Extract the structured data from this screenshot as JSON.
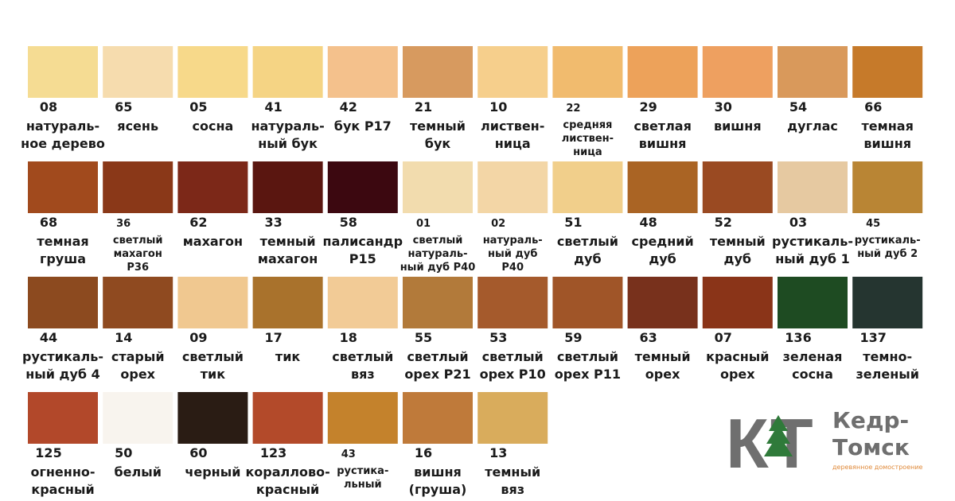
{
  "palette": {
    "rows": [
      [
        {
          "code": "08",
          "lines": [
            "натураль-",
            "ное дерево"
          ],
          "color": "#f5dc93"
        },
        {
          "code": "65",
          "lines": [
            "ясень"
          ],
          "color": "#f6dcae"
        },
        {
          "code": "05",
          "lines": [
            "сосна"
          ],
          "color": "#f7d98a"
        },
        {
          "code": "41",
          "lines": [
            "натураль-",
            "ный бук"
          ],
          "color": "#f5d484"
        },
        {
          "code": "42",
          "lines": [
            "бук Р17"
          ],
          "color": "#f4c18c"
        },
        {
          "code": "21",
          "lines": [
            "темный",
            "бук"
          ],
          "color": "#d79a5f"
        },
        {
          "code": "10",
          "lines": [
            "листвен-",
            "ница"
          ],
          "color": "#f6cf8c"
        },
        {
          "code": "22",
          "lines": [
            "средняя",
            "листвен-",
            "ница"
          ],
          "color": "#f1bb6e",
          "small": true
        },
        {
          "code": "29",
          "lines": [
            "светлая",
            "вишня"
          ],
          "color": "#eda25a"
        },
        {
          "code": "30",
          "lines": [
            "вишня"
          ],
          "color": "#eea060"
        },
        {
          "code": "54",
          "lines": [
            "дуглас"
          ],
          "color": "#d9995b"
        },
        {
          "code": "66",
          "lines": [
            "темная",
            "вишня"
          ],
          "color": "#c67a2a"
        }
      ],
      [
        {
          "code": "68",
          "lines": [
            "темная",
            "груша"
          ],
          "color": "#a14a1d"
        },
        {
          "code": "36",
          "lines": [
            "светлый",
            "махагон",
            "Р36"
          ],
          "color": "#8a3818",
          "small": true
        },
        {
          "code": "62",
          "lines": [
            "махагон"
          ],
          "color": "#7c2818"
        },
        {
          "code": "33",
          "lines": [
            "темный",
            "махагон"
          ],
          "color": "#5a1610"
        },
        {
          "code": "58",
          "lines": [
            "палисандр",
            "Р15"
          ],
          "color": "#3c0810"
        },
        {
          "code": "01",
          "lines": [
            "светлый",
            "натураль-",
            "ный дуб Р40"
          ],
          "color": "#f2dcae",
          "small": true
        },
        {
          "code": "02",
          "lines": [
            "натураль-",
            "ный дуб",
            "Р40"
          ],
          "color": "#f3d6a6",
          "small": true
        },
        {
          "code": "51",
          "lines": [
            "светлый",
            "дуб"
          ],
          "color": "#f1cf8b"
        },
        {
          "code": "48",
          "lines": [
            "средний",
            "дуб"
          ],
          "color": "#aa6424"
        },
        {
          "code": "52",
          "lines": [
            "темный",
            "дуб"
          ],
          "color": "#9a4a22"
        },
        {
          "code": "03",
          "lines": [
            "рустикаль-",
            "ный дуб 1"
          ],
          "color": "#e6c9a1"
        },
        {
          "code": "45",
          "lines": [
            "рустикаль-",
            "ный дуб 2"
          ],
          "color": "#b98534",
          "small": true
        }
      ],
      [
        {
          "code": "44",
          "lines": [
            "рустикаль-",
            "ный дуб 4"
          ],
          "color": "#8c4a1f"
        },
        {
          "code": "14",
          "lines": [
            "старый",
            "орех"
          ],
          "color": "#8f4a20"
        },
        {
          "code": "09",
          "lines": [
            "светлый",
            "тик"
          ],
          "color": "#f0c890"
        },
        {
          "code": "17",
          "lines": [
            "тик"
          ],
          "color": "#a9722c"
        },
        {
          "code": "18",
          "lines": [
            "светлый",
            "вяз"
          ],
          "color": "#f2cb96"
        },
        {
          "code": "55",
          "lines": [
            "светлый",
            "орех Р21"
          ],
          "color": "#b27a3a"
        },
        {
          "code": "53",
          "lines": [
            "светлый",
            "орех Р10"
          ],
          "color": "#a55a2c"
        },
        {
          "code": "59",
          "lines": [
            "светлый",
            "орех Р11"
          ],
          "color": "#a05528"
        },
        {
          "code": "63",
          "lines": [
            "темный",
            "орех"
          ],
          "color": "#78311c"
        },
        {
          "code": "07",
          "lines": [
            "красный",
            "орех"
          ],
          "color": "#8a3418"
        },
        {
          "code": "136",
          "lines": [
            "зеленая",
            "сосна"
          ],
          "color": "#1e4b22"
        },
        {
          "code": "137",
          "lines": [
            "темно-",
            "зеленый"
          ],
          "color": "#253530"
        }
      ],
      [
        {
          "code": "125",
          "lines": [
            "огненно-",
            "красный"
          ],
          "color": "#b2482a"
        },
        {
          "code": "50",
          "lines": [
            "белый"
          ],
          "color": "#f8f4ee"
        },
        {
          "code": "60",
          "lines": [
            "черный"
          ],
          "color": "#2a1c14"
        },
        {
          "code": "123",
          "lines": [
            "кораллово-",
            "красный"
          ],
          "color": "#b34a2a"
        },
        {
          "code": "43",
          "lines": [
            "рустика-",
            "льный"
          ],
          "color": "#c4822c",
          "small": true
        },
        {
          "code": "16",
          "lines": [
            "вишня",
            "(груша)"
          ],
          "color": "#bf7a3a"
        },
        {
          "code": "13",
          "lines": [
            "темный",
            "вяз"
          ],
          "color": "#d9ac5c"
        }
      ]
    ]
  },
  "logo": {
    "letters": "КТ",
    "name_top": "Кедр-",
    "name_bottom": "Томск",
    "tagline": "деревянное домостроение"
  }
}
